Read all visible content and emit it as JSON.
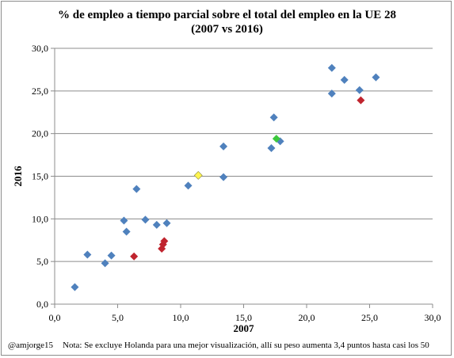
{
  "chart_data": {
    "type": "scatter",
    "title": "% de empleo a tiempo parcial sobre el total del empleo en la UE 28",
    "subtitle": "(2007 vs 2016)",
    "xlabel": "2007",
    "ylabel": "2016",
    "xlim": [
      0,
      30
    ],
    "ylim": [
      0,
      30
    ],
    "x_ticks": [
      "0,0",
      "5,0",
      "10,0",
      "15,0",
      "20,0",
      "25,0",
      "30,0"
    ],
    "y_ticks": [
      "0,0",
      "5,0",
      "10,0",
      "15,0",
      "20,0",
      "25,0",
      "30,0"
    ],
    "grid": "horizontal",
    "legend": "none",
    "marker": "diamond",
    "colors": {
      "default": "#4F81BD",
      "red": "#C0242E",
      "green": "#3CC83C",
      "yellow": "#FFF44F"
    },
    "points": [
      {
        "x": 1.6,
        "y": 2.0,
        "color": "default"
      },
      {
        "x": 2.6,
        "y": 5.8,
        "color": "default"
      },
      {
        "x": 4.0,
        "y": 4.8,
        "color": "default"
      },
      {
        "x": 4.5,
        "y": 5.7,
        "color": "default"
      },
      {
        "x": 5.5,
        "y": 9.8,
        "color": "default"
      },
      {
        "x": 5.7,
        "y": 8.5,
        "color": "default"
      },
      {
        "x": 6.5,
        "y": 13.5,
        "color": "default"
      },
      {
        "x": 7.2,
        "y": 9.9,
        "color": "default"
      },
      {
        "x": 8.1,
        "y": 9.3,
        "color": "default"
      },
      {
        "x": 8.9,
        "y": 9.5,
        "color": "default"
      },
      {
        "x": 10.6,
        "y": 13.9,
        "color": "default"
      },
      {
        "x": 13.4,
        "y": 18.5,
        "color": "default"
      },
      {
        "x": 13.4,
        "y": 14.9,
        "color": "default"
      },
      {
        "x": 17.2,
        "y": 18.3,
        "color": "default"
      },
      {
        "x": 17.4,
        "y": 21.9,
        "color": "default"
      },
      {
        "x": 17.9,
        "y": 19.1,
        "color": "default"
      },
      {
        "x": 22.0,
        "y": 27.7,
        "color": "default"
      },
      {
        "x": 22.0,
        "y": 24.7,
        "color": "default"
      },
      {
        "x": 23.0,
        "y": 26.3,
        "color": "default"
      },
      {
        "x": 24.2,
        "y": 25.1,
        "color": "default"
      },
      {
        "x": 25.5,
        "y": 26.6,
        "color": "default"
      },
      {
        "x": 6.3,
        "y": 5.6,
        "color": "red"
      },
      {
        "x": 8.5,
        "y": 6.5,
        "color": "red"
      },
      {
        "x": 8.6,
        "y": 7.0,
        "color": "red"
      },
      {
        "x": 8.7,
        "y": 7.4,
        "color": "red"
      },
      {
        "x": 24.3,
        "y": 23.9,
        "color": "red"
      },
      {
        "x": 17.6,
        "y": 19.4,
        "color": "green"
      },
      {
        "x": 11.4,
        "y": 15.1,
        "color": "yellow"
      }
    ]
  },
  "footer": {
    "handle": "@amjorge15",
    "note": "Nota: Se excluye Holanda para una mejor visualización, allí su peso aumenta 3,4 puntos hasta casi los 50"
  }
}
